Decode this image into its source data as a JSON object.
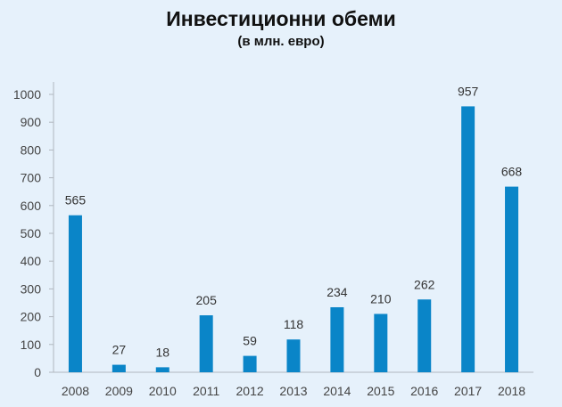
{
  "chart_data": {
    "type": "bar",
    "title": "Инвестиционни обеми",
    "subtitle": "(в млн. евро)",
    "categories": [
      "2008",
      "2009",
      "2010",
      "2011",
      "2012",
      "2013",
      "2014",
      "2015",
      "2016",
      "2017",
      "2018"
    ],
    "values": [
      565,
      27,
      18,
      205,
      59,
      118,
      234,
      210,
      262,
      957,
      668
    ],
    "data_labels": [
      "565",
      "27",
      "18",
      "205",
      "59",
      "118",
      "234",
      "210",
      "262",
      "957",
      "668"
    ],
    "yticks": [
      "0",
      "100",
      "200",
      "300",
      "400",
      "500",
      "600",
      "700",
      "800",
      "900",
      "1000"
    ],
    "ylim": [
      0,
      1000
    ],
    "xlabel": "",
    "ylabel": "",
    "grid": false,
    "legend": "none",
    "bar_color": "#0a85c8",
    "axis_color": "#b0b7bf"
  }
}
